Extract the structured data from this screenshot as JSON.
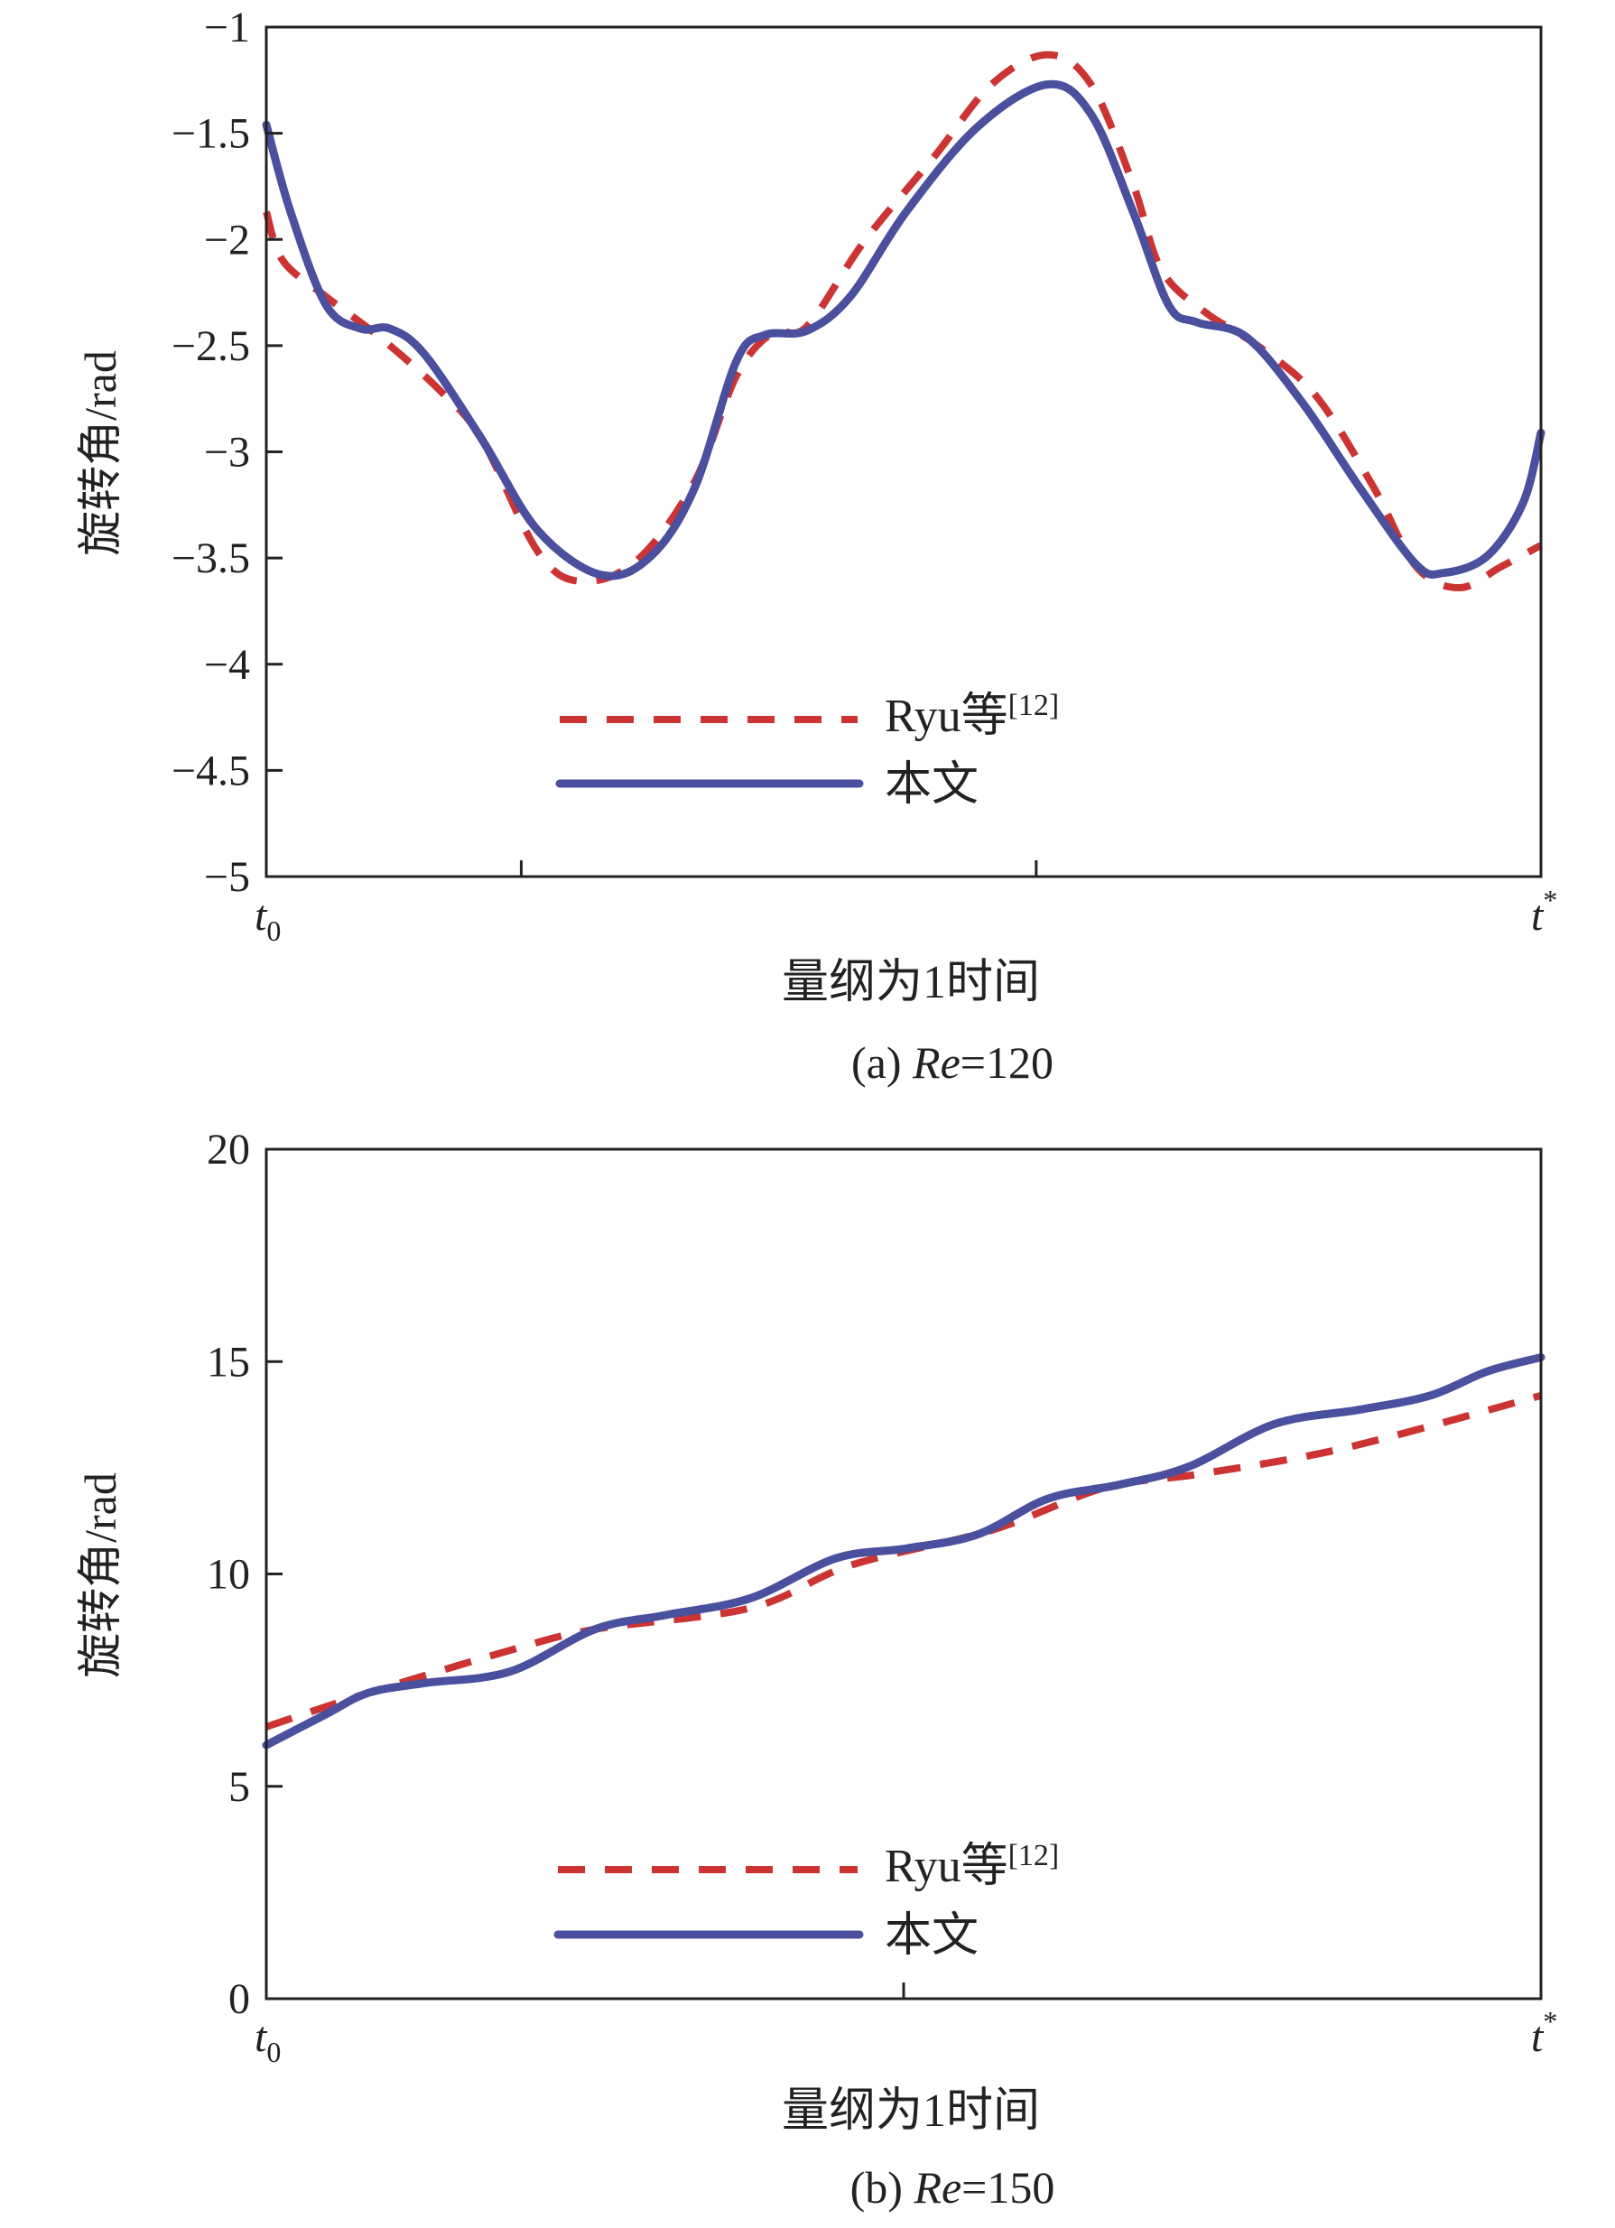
{
  "colors": {
    "ryu": "#cc3333",
    "ours": "#4a4f9e",
    "axis": "#222222"
  },
  "chart_data": [
    {
      "type": "line",
      "title": "",
      "caption_prefix": "(a) ",
      "caption_italic": "Re",
      "caption_suffix": "=120",
      "xlabel": "量纲为1时间",
      "ylabel": "旋转角/rad",
      "x_tick_start": "t",
      "x_tick_start_sub": "0",
      "x_tick_end": "t",
      "x_tick_end_sup": "*",
      "xlim": [
        0,
        1
      ],
      "ylim": [
        -5,
        -1
      ],
      "yticks": [
        -1,
        -1.5,
        -2,
        -2.5,
        -3,
        -3.5,
        -4,
        -4.5,
        -5
      ],
      "ytick_labels": [
        "−1",
        "−1.5",
        "−2",
        "−2.5",
        "−3",
        "−3.5",
        "−4",
        "−4.5",
        "−5"
      ],
      "x_minor_ticks": [
        0.2,
        0.604
      ],
      "grid": false,
      "legend_position": "lower-center",
      "legend": [
        {
          "label": "Ryu等",
          "sup": "[12]",
          "style": "dashed"
        },
        {
          "label": "本文",
          "style": "solid"
        }
      ],
      "series": [
        {
          "name": "Ryu等[12]",
          "style": "dashed",
          "x": [
            0,
            0.013,
            0.047,
            0.091,
            0.136,
            0.169,
            0.213,
            0.247,
            0.291,
            0.336,
            0.369,
            0.397,
            0.424,
            0.469,
            0.524,
            0.569,
            0.613,
            0.647,
            0.68,
            0.702,
            0.736,
            0.78,
            0.824,
            0.869,
            0.902,
            0.936,
            0.969,
            1
          ],
          "y": [
            -1.87,
            -2.1,
            -2.27,
            -2.47,
            -2.71,
            -2.94,
            -3.47,
            -3.61,
            -3.51,
            -3.14,
            -2.64,
            -2.44,
            -2.41,
            -2.01,
            -1.61,
            -1.27,
            -1.13,
            -1.27,
            -1.74,
            -2.14,
            -2.34,
            -2.51,
            -2.74,
            -3.17,
            -3.54,
            -3.64,
            -3.54,
            -3.44
          ]
        },
        {
          "name": "本文",
          "style": "solid",
          "x": [
            0,
            0.019,
            0.047,
            0.074,
            0.097,
            0.124,
            0.169,
            0.213,
            0.263,
            0.302,
            0.336,
            0.369,
            0.391,
            0.424,
            0.458,
            0.502,
            0.558,
            0.613,
            0.647,
            0.68,
            0.708,
            0.73,
            0.769,
            0.813,
            0.858,
            0.902,
            0.924,
            0.958,
            0.986,
            1
          ],
          "y": [
            -1.46,
            -1.87,
            -2.31,
            -2.42,
            -2.42,
            -2.54,
            -2.94,
            -3.37,
            -3.58,
            -3.49,
            -3.17,
            -2.57,
            -2.45,
            -2.43,
            -2.27,
            -1.87,
            -1.47,
            -1.27,
            -1.41,
            -1.87,
            -2.31,
            -2.39,
            -2.46,
            -2.77,
            -3.17,
            -3.53,
            -3.57,
            -3.49,
            -3.24,
            -2.91
          ]
        }
      ]
    },
    {
      "type": "line",
      "title": "",
      "caption_prefix": "(b) ",
      "caption_italic": "Re",
      "caption_suffix": "=150",
      "xlabel": "量纲为1时间",
      "ylabel": "旋转角/rad",
      "x_tick_start": "t",
      "x_tick_start_sub": "0",
      "x_tick_end": "t",
      "x_tick_end_sup": "*",
      "xlim": [
        0,
        1
      ],
      "ylim": [
        0,
        20
      ],
      "yticks": [
        20,
        15,
        10,
        5,
        0
      ],
      "ytick_labels": [
        "20",
        "15",
        "10",
        "5",
        "0"
      ],
      "x_minor_ticks": [
        0.5
      ],
      "grid": false,
      "legend_position": "lower-center",
      "legend": [
        {
          "label": "Ryu等",
          "sup": "[12]",
          "style": "dashed"
        },
        {
          "label": "本文",
          "style": "solid"
        }
      ],
      "series": [
        {
          "name": "Ryu等[12]",
          "style": "dashed",
          "x": [
            0,
            0.08,
            0.191,
            0.258,
            0.38,
            0.458,
            0.569,
            0.658,
            0.736,
            0.847,
            1
          ],
          "y": [
            6.4,
            7.2,
            8.2,
            8.7,
            9.2,
            10.2,
            11.03,
            12.03,
            12.37,
            12.97,
            14.2
          ]
        },
        {
          "name": "本文",
          "style": "solid",
          "x": [
            0,
            0.047,
            0.08,
            0.124,
            0.191,
            0.258,
            0.313,
            0.38,
            0.447,
            0.502,
            0.558,
            0.613,
            0.669,
            0.724,
            0.791,
            0.858,
            0.913,
            0.958,
            1
          ],
          "y": [
            5.97,
            6.7,
            7.2,
            7.43,
            7.7,
            8.7,
            9.03,
            9.43,
            10.37,
            10.6,
            10.93,
            11.77,
            12.1,
            12.53,
            13.53,
            13.87,
            14.2,
            14.77,
            15.1
          ]
        }
      ]
    }
  ]
}
